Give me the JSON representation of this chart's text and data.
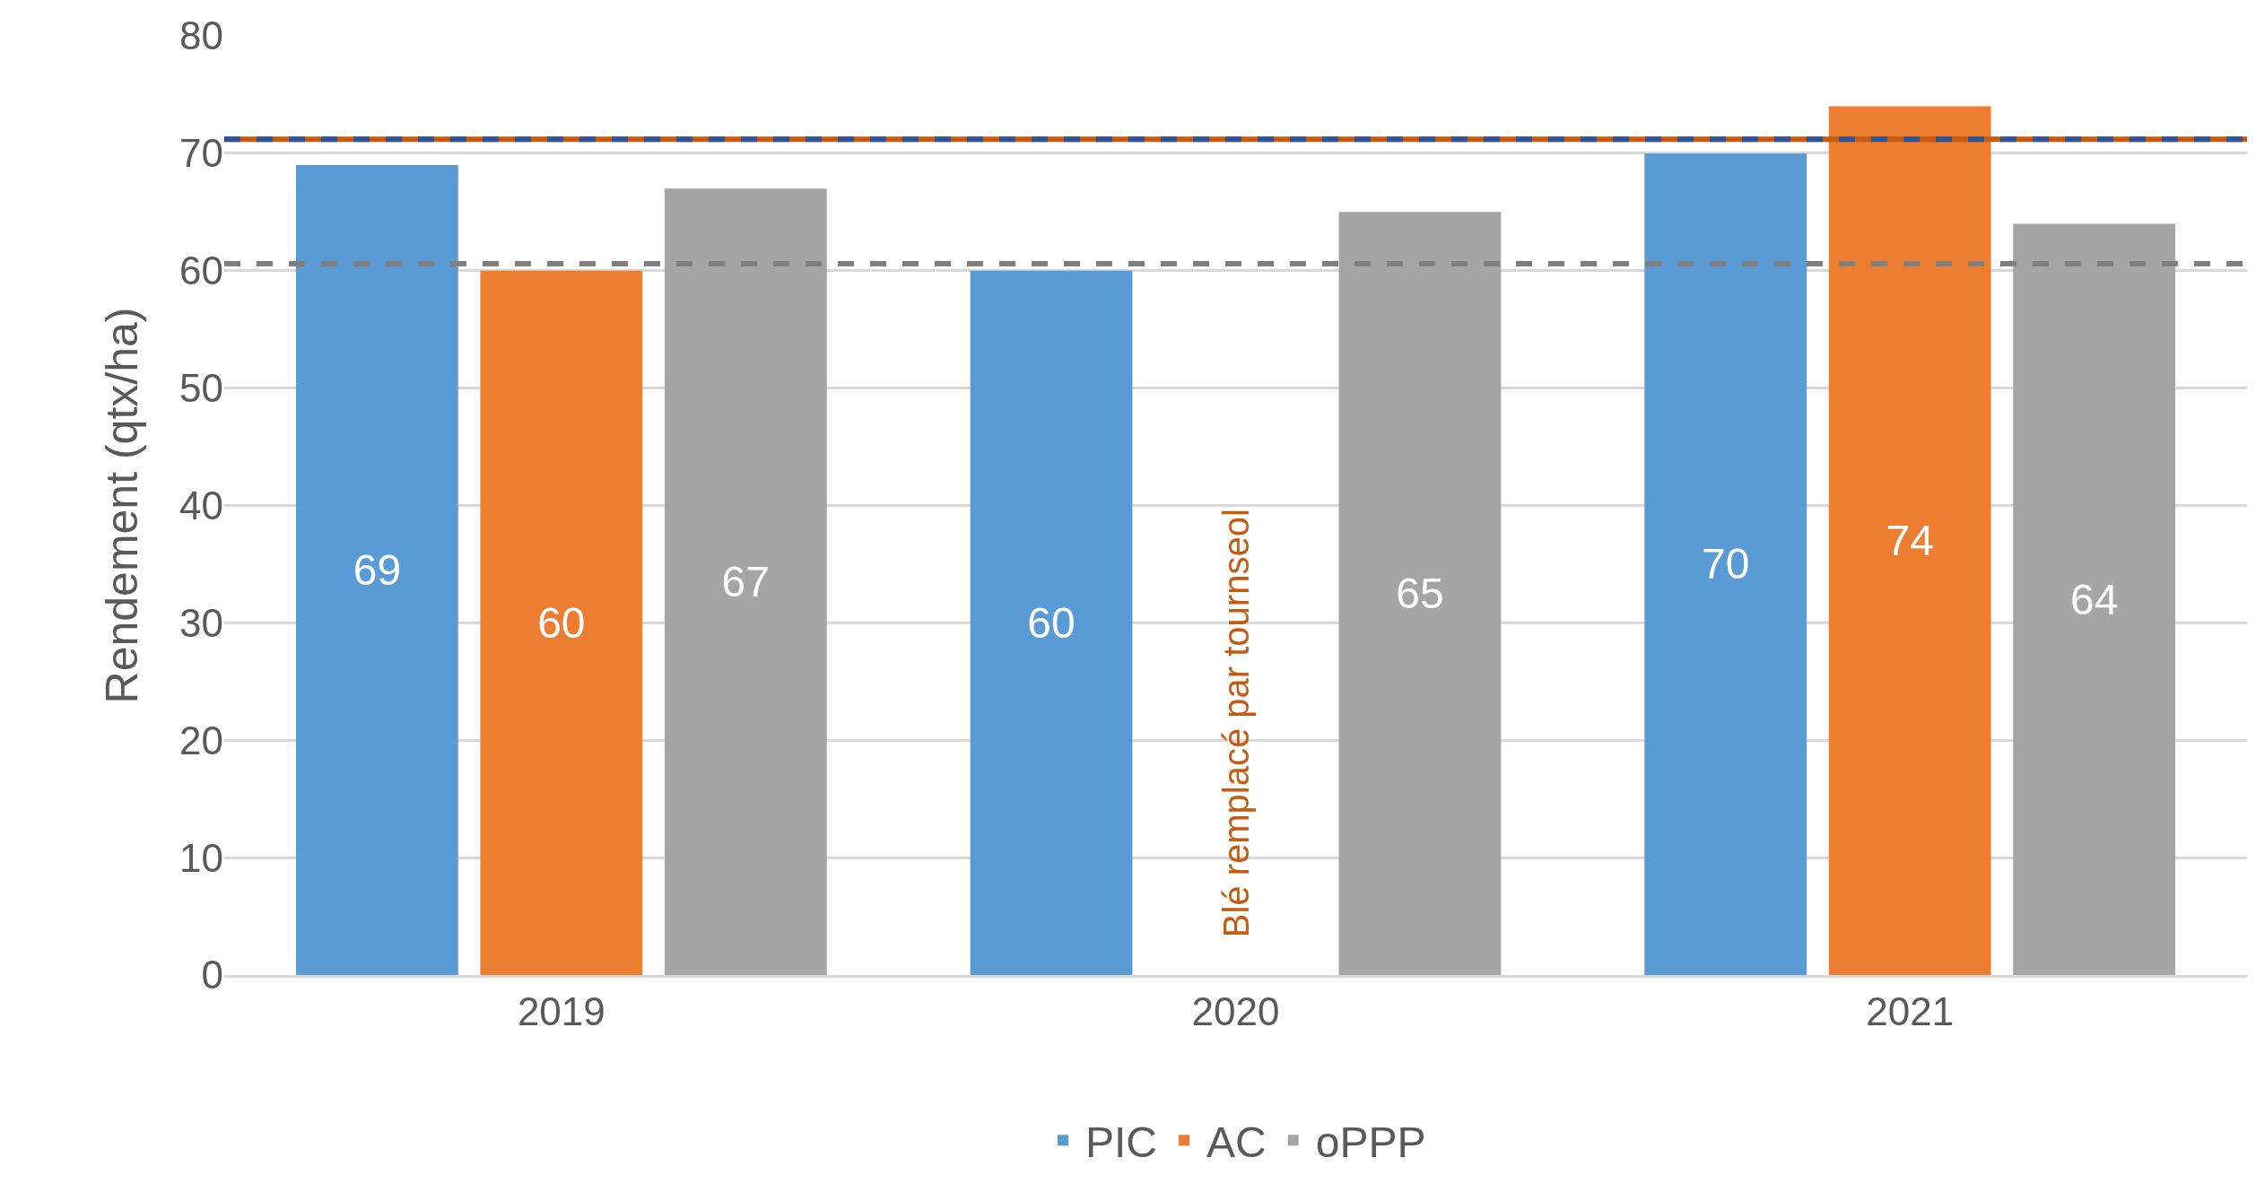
{
  "chart_data": {
    "type": "bar",
    "ylabel": "Rendement (qtx/ha)",
    "categories": [
      "2019",
      "2020",
      "2021"
    ],
    "series": [
      {
        "name": "PIC",
        "color": "#5b9bd5",
        "values": [
          69,
          60,
          70
        ]
      },
      {
        "name": "AC",
        "color": "#ed7d31",
        "values": [
          60,
          null,
          74
        ]
      },
      {
        "name": "oPPP",
        "color": "#a5a5a5",
        "values": [
          67,
          65,
          64
        ]
      }
    ],
    "ylim": [
      0,
      80
    ],
    "yticks": [
      0,
      10,
      20,
      30,
      40,
      50,
      60,
      70,
      80
    ],
    "grid": "y",
    "legend": "bottom",
    "data_labels": true,
    "ref_lines": [
      {
        "axis": "y",
        "value": 71.2,
        "color": "#c55a11",
        "line_style": "solid"
      },
      {
        "axis": "y",
        "value": 71.2,
        "color": "#2f5597",
        "line_style": "dashed"
      },
      {
        "axis": "y",
        "value": 60.6,
        "color": "#7f7f7f",
        "line_style": "dashed"
      }
    ],
    "annotations": [
      "Blé remplacé par tournseol"
    ]
  }
}
